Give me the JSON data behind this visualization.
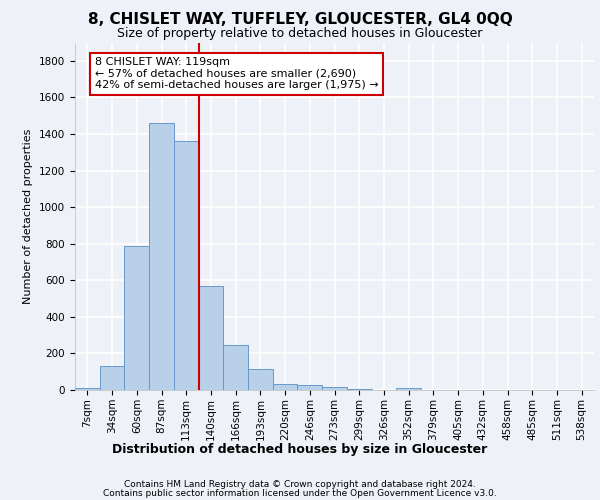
{
  "title_line1": "8, CHISLET WAY, TUFFLEY, GLOUCESTER, GL4 0QQ",
  "title_line2": "Size of property relative to detached houses in Gloucester",
  "xlabel": "Distribution of detached houses by size in Gloucester",
  "ylabel": "Number of detached properties",
  "bar_values": [
    10,
    130,
    790,
    1460,
    1360,
    570,
    245,
    115,
    35,
    25,
    15,
    5,
    0,
    10,
    0,
    0,
    0,
    0,
    0,
    0,
    0
  ],
  "bar_labels": [
    "7sqm",
    "34sqm",
    "60sqm",
    "87sqm",
    "113sqm",
    "140sqm",
    "166sqm",
    "193sqm",
    "220sqm",
    "246sqm",
    "273sqm",
    "299sqm",
    "326sqm",
    "352sqm",
    "379sqm",
    "405sqm",
    "432sqm",
    "458sqm",
    "485sqm",
    "511sqm",
    "538sqm"
  ],
  "bar_color": "#b8d0e8",
  "bar_edge_color": "#6699cc",
  "vline_color": "#cc0000",
  "annotation_box_text": "8 CHISLET WAY: 119sqm\n← 57% of detached houses are smaller (2,690)\n42% of semi-detached houses are larger (1,975) →",
  "annotation_box_color": "#cc0000",
  "background_color": "#eef2f8",
  "grid_color": "#ffffff",
  "ylim": [
    0,
    1900
  ],
  "yticks": [
    0,
    200,
    400,
    600,
    800,
    1000,
    1200,
    1400,
    1600,
    1800
  ],
  "footer_line1": "Contains HM Land Registry data © Crown copyright and database right 2024.",
  "footer_line2": "Contains public sector information licensed under the Open Government Licence v3.0.",
  "title_fontsize": 11,
  "subtitle_fontsize": 9,
  "ylabel_fontsize": 8,
  "xlabel_fontsize": 9,
  "tick_fontsize": 7.5,
  "footer_fontsize": 6.5,
  "annot_fontsize": 8
}
